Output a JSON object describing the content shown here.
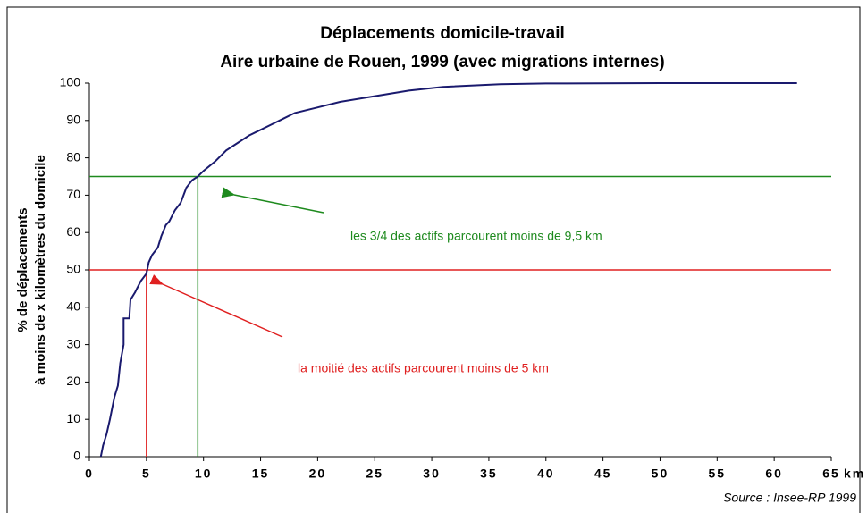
{
  "chart_data": {
    "type": "line",
    "title": "Déplacements domicile-travail",
    "subtitle": "Aire urbaine de Rouen, 1999 (avec migrations internes)",
    "y_label": [
      "% de déplacements",
      "à moins de x kilomètres du domicile"
    ],
    "x_label": "km",
    "source": "Source : Insee-RP 1999",
    "color": "#1a1a6e",
    "x": [
      1,
      1.2,
      1.5,
      1.8,
      2,
      2.2,
      2.5,
      2.7,
      3,
      3,
      3.5,
      3.6,
      4,
      4.5,
      5,
      5.2,
      5.5,
      6,
      6.3,
      6.7,
      7,
      7.5,
      8,
      8.5,
      9,
      9.5,
      10,
      11,
      12,
      13,
      14,
      15,
      16,
      17,
      18,
      20,
      22,
      25,
      28,
      31,
      36,
      40,
      50,
      62
    ],
    "values": [
      0,
      3,
      6,
      10,
      13,
      16,
      19,
      25,
      30,
      37,
      37,
      42,
      44,
      47,
      49,
      52,
      54,
      56,
      59,
      62,
      63,
      66,
      68,
      72,
      74,
      75,
      76.5,
      79,
      82,
      84,
      86,
      87.5,
      89,
      90.5,
      92,
      93.5,
      95,
      96.5,
      98,
      99,
      99.7,
      99.9,
      100,
      100
    ],
    "xlim": [
      0,
      65
    ],
    "xticks": [
      0,
      5,
      10,
      15,
      20,
      25,
      30,
      35,
      40,
      45,
      50,
      55,
      60,
      65
    ],
    "ylim": [
      0,
      100
    ],
    "yticks": [
      0,
      10,
      20,
      30,
      40,
      50,
      60,
      70,
      80,
      90,
      100
    ],
    "reference_lines": [
      {
        "x": 9.5,
        "y": 75,
        "color": "#1e8a1e"
      },
      {
        "x": 5,
        "y": 50,
        "color": "#e02020"
      }
    ],
    "annotations": [
      "les 3/4 des actifs parcourent moins de 9,5 km",
      "la moitié des actifs parcourent moins de 5 km"
    ]
  }
}
